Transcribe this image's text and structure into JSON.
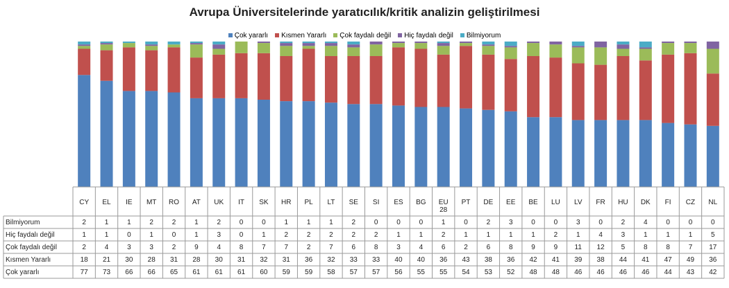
{
  "chart_data": {
    "type": "stacked_bar",
    "title": "Avrupa Üniversitelerinde yaratıcılık/kritik analizin geliştirilmesi",
    "categories": [
      "CY",
      "EL",
      "IE",
      "MT",
      "RO",
      "AT",
      "UK",
      "IT",
      "SK",
      "HR",
      "PL",
      "LT",
      "SE",
      "SI",
      "ES",
      "BG",
      "EU 28",
      "PT",
      "DE",
      "EE",
      "BE",
      "LU",
      "LV",
      "FR",
      "HU",
      "DK",
      "FI",
      "CZ",
      "NL"
    ],
    "series": [
      {
        "name": "Çok yararlı",
        "color": "#4f81bd",
        "values": [
          77,
          73,
          66,
          66,
          65,
          61,
          61,
          61,
          60,
          59,
          59,
          58,
          57,
          57,
          56,
          55,
          55,
          54,
          53,
          52,
          48,
          48,
          46,
          46,
          46,
          46,
          44,
          43,
          42
        ]
      },
      {
        "name": "Kısmen Yararlı",
        "color": "#c0504d",
        "values": [
          18,
          21,
          30,
          28,
          31,
          28,
          30,
          31,
          32,
          31,
          36,
          32,
          33,
          33,
          40,
          40,
          36,
          43,
          38,
          36,
          42,
          41,
          39,
          38,
          44,
          41,
          47,
          49,
          36
        ]
      },
      {
        "name": "Çok faydalı değil",
        "color": "#9bbb59",
        "values": [
          2,
          4,
          3,
          3,
          2,
          9,
          4,
          8,
          7,
          7,
          2,
          7,
          6,
          8,
          3,
          4,
          6,
          2,
          6,
          8,
          9,
          9,
          11,
          12,
          5,
          8,
          8,
          7,
          17
        ]
      },
      {
        "name": "Hiç faydalı değil",
        "color": "#8064a2",
        "values": [
          1,
          1,
          0,
          1,
          0,
          1,
          3,
          0,
          1,
          2,
          2,
          2,
          2,
          2,
          1,
          1,
          2,
          1,
          1,
          1,
          1,
          2,
          1,
          4,
          3,
          1,
          1,
          1,
          5
        ]
      },
      {
        "name": "Bilmiyorum",
        "color": "#4bacc6",
        "values": [
          2,
          1,
          1,
          2,
          2,
          1,
          2,
          0,
          0,
          1,
          1,
          1,
          2,
          0,
          0,
          0,
          1,
          0,
          2,
          3,
          0,
          0,
          3,
          0,
          2,
          4,
          0,
          0,
          0
        ]
      }
    ],
    "ylim": [
      0,
      100
    ],
    "legend": "top"
  }
}
